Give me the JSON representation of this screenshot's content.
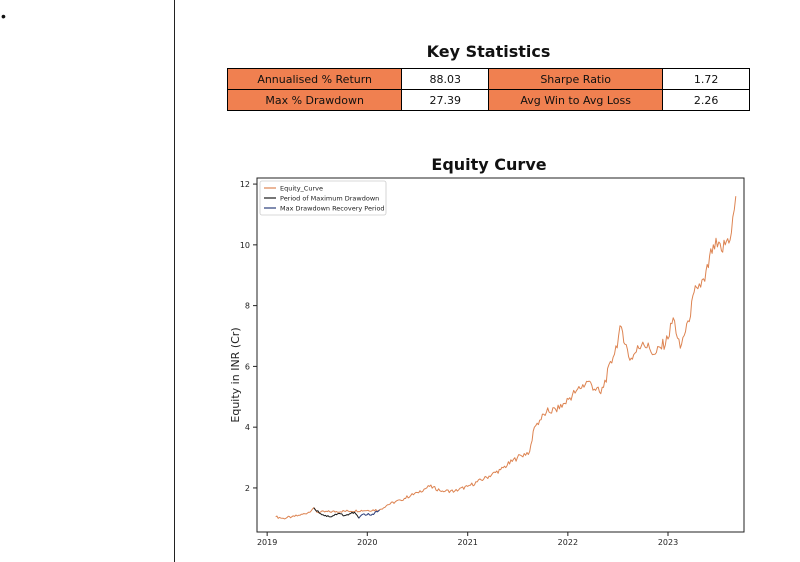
{
  "page": {
    "bullet": "•"
  },
  "stats": {
    "title": "Key Statistics",
    "rows": [
      [
        {
          "label": "Annualised % Return",
          "value": "88.03"
        },
        {
          "label": "Sharpe Ratio",
          "value": "1.72"
        }
      ],
      [
        {
          "label": "Max % Drawdown",
          "value": "27.39"
        },
        {
          "label": "Avg Win to Avg Loss",
          "value": "2.26"
        }
      ]
    ]
  },
  "chart_data": {
    "type": "line",
    "title": "Equity Curve",
    "xlabel": "",
    "ylabel": "Equity in INR (Cr)",
    "xlim": [
      "2018-11-25",
      "2023-10-05"
    ],
    "ylim": [
      0.55,
      12.2
    ],
    "xticks": [
      "2019",
      "2020",
      "2021",
      "2022",
      "2023"
    ],
    "xtick_dates": [
      "2019-01-01",
      "2020-01-01",
      "2021-01-01",
      "2022-01-01",
      "2023-01-01"
    ],
    "yticks": [
      2,
      4,
      6,
      8,
      10,
      12
    ],
    "grid": false,
    "legend": "top-left",
    "series": [
      {
        "name": "Equity_Curve",
        "color": "#dd8452",
        "points": [
          [
            "2019-02-01",
            1.05
          ],
          [
            "2019-03-01",
            1.0
          ],
          [
            "2019-04-01",
            1.05
          ],
          [
            "2019-05-01",
            1.1
          ],
          [
            "2019-06-01",
            1.2
          ],
          [
            "2019-06-20",
            1.35
          ],
          [
            "2019-07-01",
            1.2
          ],
          [
            "2020-02-15",
            1.28
          ],
          [
            "2020-03-15",
            1.45
          ],
          [
            "2020-05-01",
            1.6
          ],
          [
            "2020-07-01",
            1.85
          ],
          [
            "2020-08-15",
            2.05
          ],
          [
            "2020-10-01",
            1.9
          ],
          [
            "2020-11-15",
            1.9
          ],
          [
            "2021-01-01",
            2.05
          ],
          [
            "2021-03-01",
            2.3
          ],
          [
            "2021-05-01",
            2.6
          ],
          [
            "2021-07-01",
            3.0
          ],
          [
            "2021-08-15",
            3.2
          ],
          [
            "2021-09-01",
            4.0
          ],
          [
            "2021-10-15",
            4.5
          ],
          [
            "2021-12-01",
            4.6
          ],
          [
            "2022-02-01",
            5.2
          ],
          [
            "2022-03-15",
            5.5
          ],
          [
            "2022-05-01",
            5.1
          ],
          [
            "2022-06-15",
            6.3
          ],
          [
            "2022-07-15",
            7.3
          ],
          [
            "2022-08-15",
            6.2
          ],
          [
            "2022-10-01",
            6.8
          ],
          [
            "2022-11-15",
            6.4
          ],
          [
            "2023-01-01",
            6.9
          ],
          [
            "2023-01-20",
            7.6
          ],
          [
            "2023-02-15",
            6.6
          ],
          [
            "2023-03-15",
            7.5
          ],
          [
            "2023-04-15",
            8.6
          ],
          [
            "2023-05-15",
            8.8
          ],
          [
            "2023-06-15",
            10.0
          ],
          [
            "2023-07-15",
            9.8
          ],
          [
            "2023-08-20",
            10.4
          ],
          [
            "2023-09-05",
            11.6
          ]
        ]
      },
      {
        "name": "Period of Maximum Drawdown",
        "color": "#1a1a1a",
        "points": [
          [
            "2019-06-20",
            1.35
          ],
          [
            "2019-07-15",
            1.15
          ],
          [
            "2019-08-15",
            1.05
          ],
          [
            "2019-09-15",
            1.15
          ],
          [
            "2019-10-15",
            1.1
          ],
          [
            "2019-11-15",
            1.2
          ],
          [
            "2019-12-01",
            1.0
          ]
        ]
      },
      {
        "name": "Max Drawdown Recovery Period",
        "color": "#2c3e7a",
        "points": [
          [
            "2019-12-01",
            1.0
          ],
          [
            "2019-12-20",
            1.15
          ],
          [
            "2020-01-15",
            1.1
          ],
          [
            "2020-02-15",
            1.28
          ]
        ]
      }
    ]
  }
}
